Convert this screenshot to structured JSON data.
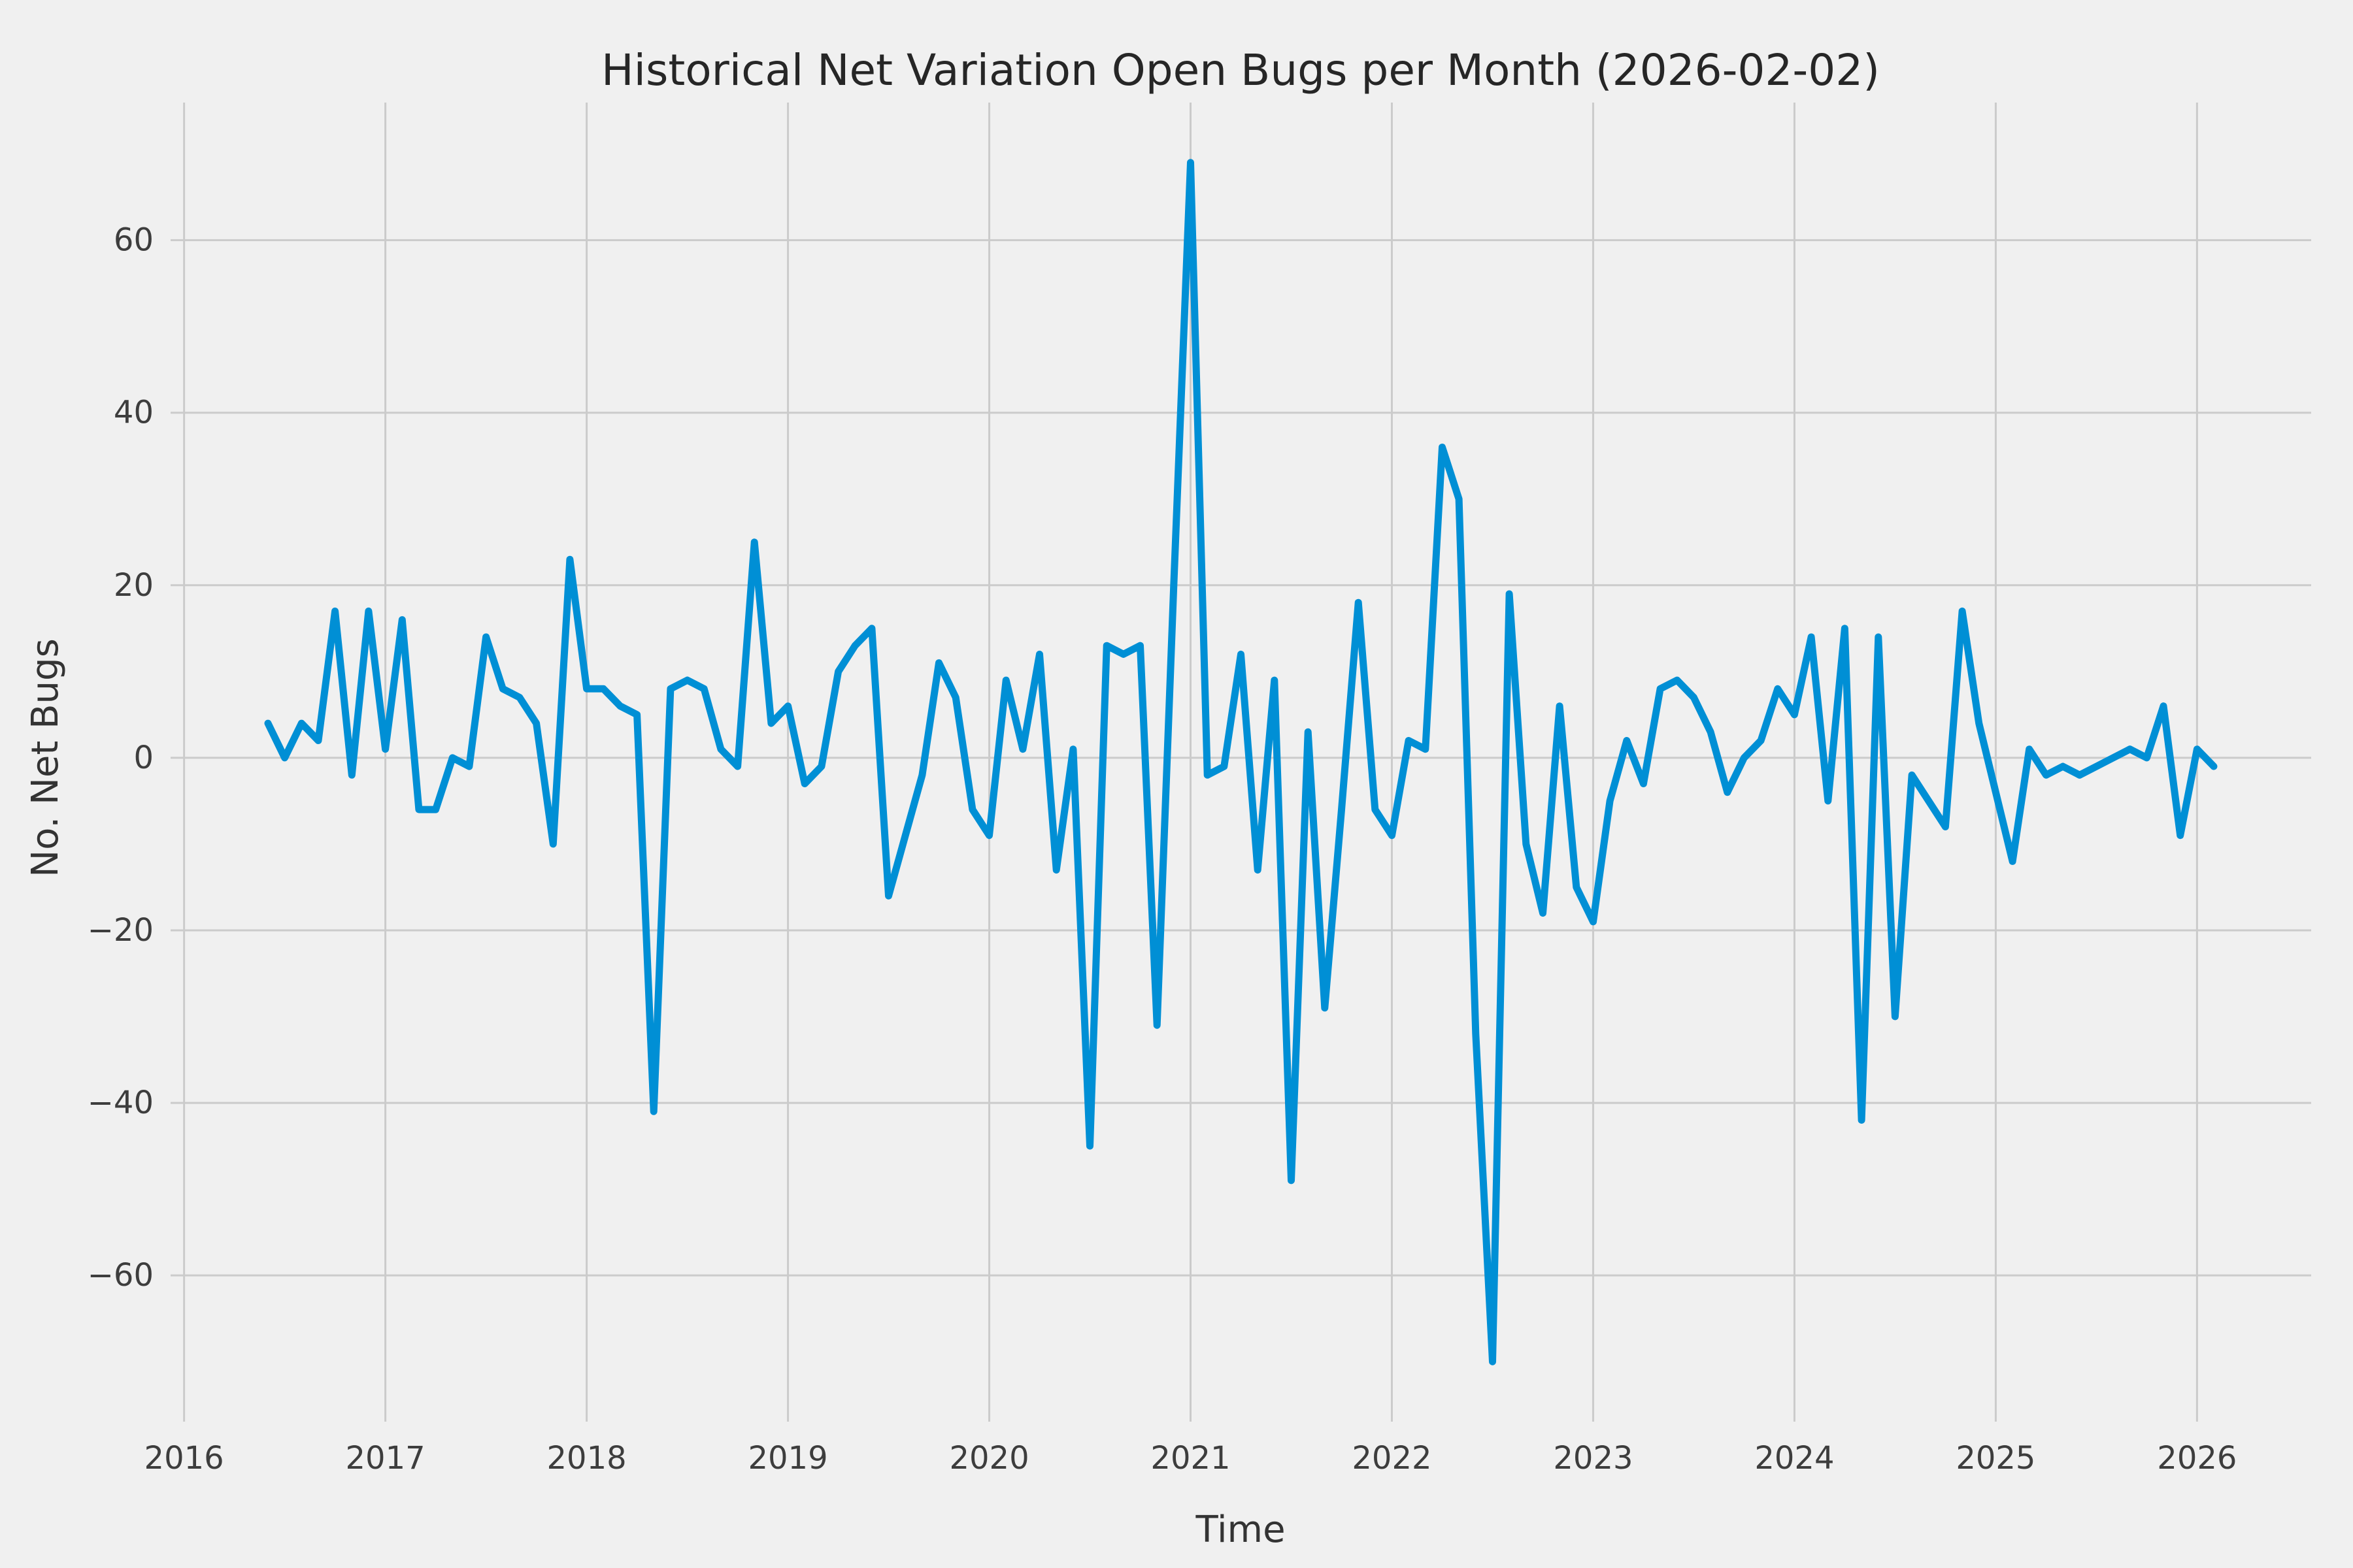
{
  "chart_data": {
    "type": "line",
    "title": "Historical Net Variation Open Bugs per Month (2026-02-02)",
    "xlabel": "Time",
    "ylabel": "No. Net Bugs",
    "grid": true,
    "legend": false,
    "line_color": "#008fd5",
    "background_color": "#f0f0f0",
    "grid_color": "#cbcbcb",
    "xlim": [
      2015.933,
      2026.567
    ],
    "ylim": [
      -76.95,
      75.95
    ],
    "xticks": [
      2016,
      2017,
      2018,
      2019,
      2020,
      2021,
      2022,
      2023,
      2024,
      2025,
      2026
    ],
    "xtick_labels": [
      "2016",
      "2017",
      "2018",
      "2019",
      "2020",
      "2021",
      "2022",
      "2023",
      "2024",
      "2025",
      "2026"
    ],
    "yticks": [
      -60,
      -40,
      -20,
      0,
      20,
      40,
      60
    ],
    "ytick_labels": [
      "−60",
      "−40",
      "−20",
      "0",
      "20",
      "40",
      "60"
    ],
    "x": [
      "2016-06",
      "2016-07",
      "2016-08",
      "2016-09",
      "2016-10",
      "2016-11",
      "2016-12",
      "2017-01",
      "2017-02",
      "2017-03",
      "2017-04",
      "2017-05",
      "2017-06",
      "2017-07",
      "2017-08",
      "2017-09",
      "2017-10",
      "2017-11",
      "2017-12",
      "2018-01",
      "2018-02",
      "2018-03",
      "2018-04",
      "2018-05",
      "2018-06",
      "2018-07",
      "2018-08",
      "2018-09",
      "2018-10",
      "2018-11",
      "2018-12",
      "2019-01",
      "2019-02",
      "2019-03",
      "2019-04",
      "2019-05",
      "2019-06",
      "2019-07",
      "2019-08",
      "2019-09",
      "2019-10",
      "2019-11",
      "2019-12",
      "2020-01",
      "2020-02",
      "2020-03",
      "2020-04",
      "2020-05",
      "2020-06",
      "2020-07",
      "2020-08",
      "2020-09",
      "2020-10",
      "2020-11",
      "2020-12",
      "2021-01",
      "2021-02",
      "2021-03",
      "2021-04",
      "2021-05",
      "2021-06",
      "2021-07",
      "2021-08",
      "2021-09",
      "2021-10",
      "2021-11",
      "2021-12",
      "2022-01",
      "2022-02",
      "2022-03",
      "2022-04",
      "2022-05",
      "2022-06",
      "2022-07",
      "2022-08",
      "2022-09",
      "2022-10",
      "2022-11",
      "2022-12",
      "2023-01",
      "2023-02",
      "2023-03",
      "2023-04",
      "2023-05",
      "2023-06",
      "2023-07",
      "2023-08",
      "2023-09",
      "2023-10",
      "2023-11",
      "2023-12",
      "2024-01",
      "2024-02",
      "2024-03",
      "2024-04",
      "2024-05",
      "2024-06",
      "2024-07",
      "2024-08",
      "2024-09",
      "2024-10",
      "2024-11",
      "2024-12",
      "2025-01",
      "2025-02",
      "2025-03",
      "2025-04",
      "2025-05",
      "2025-06",
      "2025-07",
      "2025-08",
      "2025-09",
      "2025-10",
      "2025-11",
      "2025-12",
      "2026-01",
      "2026-02"
    ],
    "values": [
      4,
      0,
      4,
      2,
      17,
      -2,
      17,
      1,
      16,
      -6,
      -6,
      0,
      -1,
      14,
      8,
      7,
      4,
      -10,
      23,
      8,
      8,
      6,
      5,
      -41,
      8,
      9,
      8,
      1,
      -1,
      25,
      4,
      6,
      -3,
      -1,
      10,
      13,
      15,
      -16,
      -9,
      -2,
      11,
      7,
      -6,
      -9,
      9,
      1,
      12,
      -13,
      1,
      -45,
      13,
      12,
      13,
      -31,
      20,
      69,
      -2,
      -1,
      12,
      -13,
      9,
      -49,
      3,
      -29,
      -6,
      18,
      -6,
      -9,
      2,
      1,
      36,
      30,
      -32,
      -70,
      19,
      -10,
      -18,
      6,
      -15,
      -19,
      -5,
      2,
      -3,
      8,
      9,
      7,
      3,
      -4,
      0,
      2,
      8,
      5,
      14,
      -5,
      15,
      -42,
      14,
      -30,
      -2,
      -5,
      -8,
      17,
      4,
      -4,
      -12,
      1,
      -2,
      -1,
      -2,
      -1,
      0,
      1,
      0,
      6,
      -9,
      1,
      -1
    ]
  }
}
